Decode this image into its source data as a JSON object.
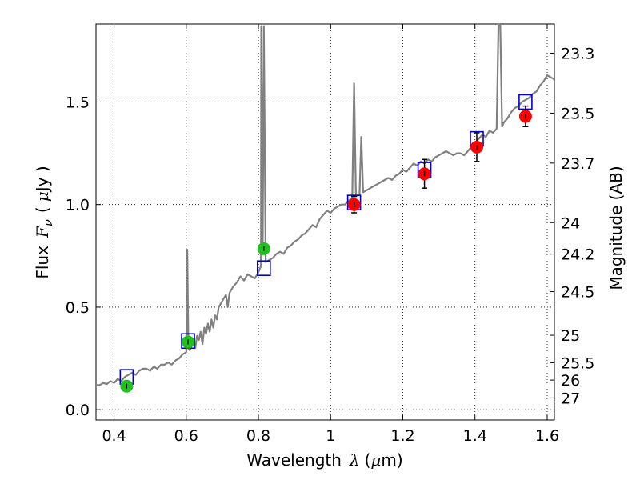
{
  "chart_data": {
    "type": "scatter",
    "xlabel": {
      "prefix": "Wavelength",
      "symbol": "λ",
      "unit_open": "(",
      "unit_sym": "μ",
      "unit_rest": "m)"
    },
    "ylabel": {
      "prefix": "Flux",
      "symbol": "F",
      "subscript": "ν",
      "unit_open": "(",
      "unit_sym": "μ",
      "unit_rest": "Jy )"
    },
    "y2label": "Magnitude (AB)",
    "xlim": [
      0.35,
      1.62
    ],
    "ylim": [
      -0.05,
      1.88
    ],
    "grid": true,
    "x_ticks": [
      {
        "value": 0.4,
        "label": "0.4"
      },
      {
        "value": 0.6,
        "label": "0.6"
      },
      {
        "value": 0.8,
        "label": "0.8"
      },
      {
        "value": 1.0,
        "label": "1"
      },
      {
        "value": 1.2,
        "label": "1.2"
      },
      {
        "value": 1.4,
        "label": "1.4"
      },
      {
        "value": 1.6,
        "label": "1.6"
      }
    ],
    "y_ticks": [
      {
        "value": 0.0,
        "label": "0.0"
      },
      {
        "value": 0.5,
        "label": "0.5"
      },
      {
        "value": 1.0,
        "label": "1.0"
      },
      {
        "value": 1.5,
        "label": "1.5"
      }
    ],
    "mag_ticks": [
      {
        "value": 23.3,
        "label": "23.3"
      },
      {
        "value": 23.5,
        "label": "23.5"
      },
      {
        "value": 23.7,
        "label": "23.7"
      },
      {
        "value": 24.0,
        "label": "24"
      },
      {
        "value": 24.2,
        "label": "24.2"
      },
      {
        "value": 24.5,
        "label": "24.5"
      },
      {
        "value": 25.0,
        "label": "25"
      },
      {
        "value": 25.5,
        "label": "25.5"
      },
      {
        "value": 26.0,
        "label": "26"
      },
      {
        "value": 27.0,
        "label": "27"
      }
    ],
    "series": [
      {
        "kind": "line",
        "color": "#808080",
        "points": [
          [
            0.35,
            0.12
          ],
          [
            0.36,
            0.12
          ],
          [
            0.37,
            0.13
          ],
          [
            0.38,
            0.125
          ],
          [
            0.39,
            0.14
          ],
          [
            0.4,
            0.13
          ],
          [
            0.41,
            0.15
          ],
          [
            0.42,
            0.14
          ],
          [
            0.43,
            0.16
          ],
          [
            0.44,
            0.17
          ],
          [
            0.45,
            0.18
          ],
          [
            0.46,
            0.17
          ],
          [
            0.47,
            0.19
          ],
          [
            0.48,
            0.2
          ],
          [
            0.49,
            0.2
          ],
          [
            0.5,
            0.19
          ],
          [
            0.51,
            0.21
          ],
          [
            0.52,
            0.2
          ],
          [
            0.53,
            0.22
          ],
          [
            0.54,
            0.22
          ],
          [
            0.55,
            0.23
          ],
          [
            0.56,
            0.22
          ],
          [
            0.57,
            0.24
          ],
          [
            0.58,
            0.25
          ],
          [
            0.59,
            0.27
          ],
          [
            0.6,
            0.28
          ],
          [
            0.603,
            0.78
          ],
          [
            0.606,
            0.3
          ],
          [
            0.61,
            0.29
          ],
          [
            0.62,
            0.33
          ],
          [
            0.625,
            0.3
          ],
          [
            0.63,
            0.36
          ],
          [
            0.635,
            0.34
          ],
          [
            0.64,
            0.38
          ],
          [
            0.645,
            0.32
          ],
          [
            0.65,
            0.4
          ],
          [
            0.655,
            0.37
          ],
          [
            0.66,
            0.42
          ],
          [
            0.665,
            0.38
          ],
          [
            0.67,
            0.44
          ],
          [
            0.675,
            0.4
          ],
          [
            0.68,
            0.46
          ],
          [
            0.685,
            0.44
          ],
          [
            0.69,
            0.5
          ],
          [
            0.7,
            0.53
          ],
          [
            0.71,
            0.56
          ],
          [
            0.715,
            0.5
          ],
          [
            0.72,
            0.57
          ],
          [
            0.73,
            0.6
          ],
          [
            0.74,
            0.62
          ],
          [
            0.75,
            0.65
          ],
          [
            0.76,
            0.63
          ],
          [
            0.77,
            0.66
          ],
          [
            0.78,
            0.65
          ],
          [
            0.79,
            0.64
          ],
          [
            0.8,
            0.67
          ],
          [
            0.807,
            0.7
          ],
          [
            0.808,
            1.87
          ],
          [
            0.812,
            0.8
          ],
          [
            0.815,
            1.87
          ],
          [
            0.82,
            0.72
          ],
          [
            0.83,
            0.73
          ],
          [
            0.84,
            0.74
          ],
          [
            0.85,
            0.76
          ],
          [
            0.86,
            0.77
          ],
          [
            0.87,
            0.76
          ],
          [
            0.88,
            0.79
          ],
          [
            0.89,
            0.8
          ],
          [
            0.9,
            0.82
          ],
          [
            0.91,
            0.83
          ],
          [
            0.92,
            0.85
          ],
          [
            0.93,
            0.86
          ],
          [
            0.94,
            0.88
          ],
          [
            0.95,
            0.9
          ],
          [
            0.96,
            0.89
          ],
          [
            0.97,
            0.93
          ],
          [
            0.98,
            0.95
          ],
          [
            0.99,
            0.97
          ],
          [
            1.0,
            0.96
          ],
          [
            1.01,
            0.98
          ],
          [
            1.02,
            0.99
          ],
          [
            1.03,
            1.0
          ],
          [
            1.04,
            1.0
          ],
          [
            1.05,
            1.02
          ],
          [
            1.06,
            1.03
          ],
          [
            1.065,
            1.59
          ],
          [
            1.07,
            1.04
          ],
          [
            1.08,
            1.05
          ],
          [
            1.085,
            1.33
          ],
          [
            1.09,
            1.06
          ],
          [
            1.1,
            1.07
          ],
          [
            1.11,
            1.08
          ],
          [
            1.12,
            1.09
          ],
          [
            1.13,
            1.1
          ],
          [
            1.14,
            1.11
          ],
          [
            1.15,
            1.12
          ],
          [
            1.16,
            1.13
          ],
          [
            1.17,
            1.12
          ],
          [
            1.18,
            1.14
          ],
          [
            1.19,
            1.15
          ],
          [
            1.2,
            1.17
          ],
          [
            1.21,
            1.16
          ],
          [
            1.22,
            1.18
          ],
          [
            1.23,
            1.2
          ],
          [
            1.24,
            1.19
          ],
          [
            1.25,
            1.21
          ],
          [
            1.26,
            1.2
          ],
          [
            1.27,
            1.22
          ],
          [
            1.28,
            1.21
          ],
          [
            1.29,
            1.23
          ],
          [
            1.3,
            1.24
          ],
          [
            1.31,
            1.25
          ],
          [
            1.32,
            1.26
          ],
          [
            1.33,
            1.25
          ],
          [
            1.34,
            1.24
          ],
          [
            1.35,
            1.25
          ],
          [
            1.36,
            1.25
          ],
          [
            1.37,
            1.24
          ],
          [
            1.38,
            1.26
          ],
          [
            1.39,
            1.28
          ],
          [
            1.4,
            1.3
          ],
          [
            1.41,
            1.32
          ],
          [
            1.42,
            1.34
          ],
          [
            1.43,
            1.33
          ],
          [
            1.44,
            1.36
          ],
          [
            1.45,
            1.35
          ],
          [
            1.46,
            1.37
          ],
          [
            1.465,
            1.88
          ],
          [
            1.47,
            1.88
          ],
          [
            1.475,
            1.38
          ],
          [
            1.48,
            1.4
          ],
          [
            1.49,
            1.42
          ],
          [
            1.5,
            1.45
          ],
          [
            1.51,
            1.47
          ],
          [
            1.52,
            1.48
          ],
          [
            1.53,
            1.5
          ],
          [
            1.54,
            1.51
          ],
          [
            1.55,
            1.52
          ],
          [
            1.56,
            1.54
          ],
          [
            1.57,
            1.55
          ],
          [
            1.58,
            1.58
          ],
          [
            1.59,
            1.6
          ],
          [
            1.6,
            1.63
          ],
          [
            1.61,
            1.62
          ],
          [
            1.62,
            1.61
          ]
        ]
      },
      {
        "kind": "squares",
        "color": "#0000cc",
        "points": [
          [
            0.435,
            0.16
          ],
          [
            0.605,
            0.335
          ],
          [
            0.815,
            0.69
          ],
          [
            1.065,
            1.01
          ],
          [
            1.26,
            1.17
          ],
          [
            1.405,
            1.32
          ],
          [
            1.54,
            1.5
          ]
        ]
      },
      {
        "kind": "circles",
        "color": "#1fc01f",
        "points": [
          {
            "x": 0.435,
            "y": 0.115,
            "err": 0.015
          },
          {
            "x": 0.605,
            "y": 0.33,
            "err": 0.02
          },
          {
            "x": 0.815,
            "y": 0.785,
            "err": 0.025
          }
        ]
      },
      {
        "kind": "circles",
        "color": "#ff0000",
        "points": [
          {
            "x": 1.065,
            "y": 1.0,
            "err": 0.04
          },
          {
            "x": 1.26,
            "y": 1.15,
            "err": 0.07
          },
          {
            "x": 1.405,
            "y": 1.28,
            "err": 0.07
          },
          {
            "x": 1.54,
            "y": 1.43,
            "err": 0.05
          }
        ]
      }
    ]
  }
}
